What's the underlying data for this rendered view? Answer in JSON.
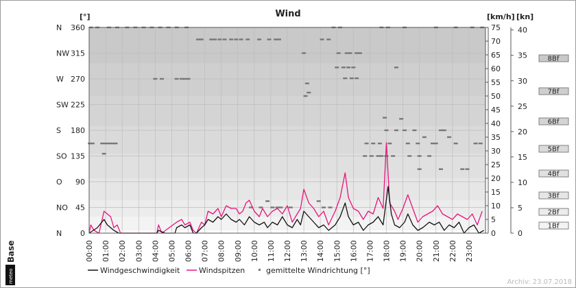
{
  "chart_data": {
    "type": "line",
    "title": "Wind",
    "units": {
      "direction": "[°]",
      "speed_kmh": "[km/h]",
      "speed_kn": "[kn]"
    },
    "direction_axis": {
      "ylim": [
        0,
        360
      ],
      "ticks": [
        {
          "value": 0,
          "compass": "N",
          "label": "0"
        },
        {
          "value": 45,
          "compass": "NO",
          "label": "45"
        },
        {
          "value": 90,
          "compass": "O",
          "label": "90"
        },
        {
          "value": 135,
          "compass": "SO",
          "label": "135"
        },
        {
          "value": 180,
          "compass": "S",
          "label": "180"
        },
        {
          "value": 225,
          "compass": "SW",
          "label": "225"
        },
        {
          "value": 270,
          "compass": "W",
          "label": "270"
        },
        {
          "value": 315,
          "compass": "NW",
          "label": "315"
        },
        {
          "value": 360,
          "compass": "N",
          "label": "360"
        }
      ]
    },
    "kmh_axis": {
      "ylim": [
        0,
        75
      ],
      "ticks": [
        0,
        5,
        10,
        15,
        20,
        25,
        30,
        35,
        40,
        45,
        50,
        55,
        60,
        65,
        70,
        75
      ]
    },
    "kn_axis": {
      "ticks": [
        0,
        5,
        10,
        15,
        20,
        25,
        30,
        35,
        40
      ]
    },
    "beaufort": [
      {
        "label": "1Bf",
        "kmh": 1
      },
      {
        "label": "2Bf",
        "kmh": 6
      },
      {
        "label": "3Bf",
        "kmh": 12
      },
      {
        "label": "4Bf",
        "kmh": 20
      },
      {
        "label": "5Bf",
        "kmh": 29
      },
      {
        "label": "6Bf",
        "kmh": 39
      },
      {
        "label": "7Bf",
        "kmh": 50
      },
      {
        "label": "8Bf",
        "kmh": 62
      }
    ],
    "x_ticks": [
      "00:00",
      "01:00",
      "02:00",
      "03:00",
      "04:00",
      "05:00",
      "06:00",
      "07:00",
      "08:00",
      "09:00",
      "10:00",
      "11:00",
      "12:00",
      "13:00",
      "14:00",
      "15:00",
      "16:00",
      "17:00",
      "18:00",
      "19:00",
      "20:00",
      "21:00",
      "22:00",
      "23:00"
    ],
    "xlim_hours": [
      0,
      24
    ],
    "series": [
      {
        "name": "Windgeschwindigkeit",
        "color": "#111111",
        "points": [
          [
            0,
            0
          ],
          [
            0.5,
            2
          ],
          [
            0.9,
            5
          ],
          [
            1.1,
            3
          ],
          [
            1.5,
            1
          ],
          [
            1.8,
            0
          ],
          [
            3,
            0
          ],
          [
            4.1,
            0
          ],
          [
            4.2,
            1
          ],
          [
            4.6,
            0
          ],
          [
            5.2,
            0
          ],
          [
            5.3,
            2
          ],
          [
            5.6,
            3
          ],
          [
            5.8,
            2
          ],
          [
            6.1,
            3
          ],
          [
            6.3,
            0
          ],
          [
            6.5,
            0
          ],
          [
            6.8,
            2
          ],
          [
            7.0,
            3
          ],
          [
            7.2,
            5
          ],
          [
            7.5,
            4
          ],
          [
            7.8,
            6
          ],
          [
            8.0,
            5
          ],
          [
            8.3,
            7
          ],
          [
            8.6,
            5
          ],
          [
            8.9,
            4
          ],
          [
            9.1,
            5
          ],
          [
            9.4,
            3
          ],
          [
            9.7,
            6
          ],
          [
            10.0,
            4
          ],
          [
            10.3,
            3
          ],
          [
            10.6,
            4
          ],
          [
            10.8,
            2
          ],
          [
            11.1,
            4
          ],
          [
            11.4,
            3
          ],
          [
            11.7,
            6
          ],
          [
            12.0,
            3
          ],
          [
            12.3,
            2
          ],
          [
            12.6,
            5
          ],
          [
            12.8,
            3
          ],
          [
            13.0,
            8
          ],
          [
            13.3,
            6
          ],
          [
            13.6,
            4
          ],
          [
            13.9,
            2
          ],
          [
            14.2,
            3
          ],
          [
            14.5,
            1
          ],
          [
            14.9,
            3
          ],
          [
            15.2,
            6
          ],
          [
            15.5,
            11
          ],
          [
            15.7,
            6
          ],
          [
            16.0,
            3
          ],
          [
            16.3,
            4
          ],
          [
            16.6,
            1
          ],
          [
            16.9,
            3
          ],
          [
            17.2,
            4
          ],
          [
            17.5,
            6
          ],
          [
            17.8,
            3
          ],
          [
            18.1,
            17
          ],
          [
            18.3,
            7
          ],
          [
            18.5,
            3
          ],
          [
            18.8,
            2
          ],
          [
            19.1,
            4
          ],
          [
            19.3,
            7
          ],
          [
            19.6,
            3
          ],
          [
            19.9,
            1
          ],
          [
            20.2,
            2
          ],
          [
            20.6,
            4
          ],
          [
            20.9,
            3
          ],
          [
            21.2,
            4
          ],
          [
            21.5,
            1
          ],
          [
            21.8,
            3
          ],
          [
            22.1,
            2
          ],
          [
            22.4,
            4
          ],
          [
            22.7,
            0
          ],
          [
            23.0,
            2
          ],
          [
            23.3,
            3
          ],
          [
            23.6,
            0
          ],
          [
            23.9,
            1
          ]
        ]
      },
      {
        "name": "Windspitzen",
        "color": "#e8137c",
        "points": [
          [
            0,
            0
          ],
          [
            0.1,
            3
          ],
          [
            0.3,
            1
          ],
          [
            0.6,
            0
          ],
          [
            0.9,
            8
          ],
          [
            1.1,
            7
          ],
          [
            1.3,
            6
          ],
          [
            1.5,
            2
          ],
          [
            1.7,
            3
          ],
          [
            1.9,
            0
          ],
          [
            2.2,
            0
          ],
          [
            4.1,
            0
          ],
          [
            4.2,
            3
          ],
          [
            4.4,
            0
          ],
          [
            5.3,
            4
          ],
          [
            5.6,
            5
          ],
          [
            5.8,
            3
          ],
          [
            6.1,
            4
          ],
          [
            6.3,
            1
          ],
          [
            6.5,
            0
          ],
          [
            6.8,
            4
          ],
          [
            7.0,
            3
          ],
          [
            7.2,
            8
          ],
          [
            7.5,
            7
          ],
          [
            7.8,
            9
          ],
          [
            8.0,
            6
          ],
          [
            8.3,
            10
          ],
          [
            8.6,
            9
          ],
          [
            8.9,
            9
          ],
          [
            9.1,
            7
          ],
          [
            9.3,
            8
          ],
          [
            9.5,
            11
          ],
          [
            9.7,
            12
          ],
          [
            10.0,
            8
          ],
          [
            10.3,
            6
          ],
          [
            10.5,
            9
          ],
          [
            10.8,
            6
          ],
          [
            11.1,
            8
          ],
          [
            11.4,
            9
          ],
          [
            11.7,
            7
          ],
          [
            12.0,
            10
          ],
          [
            12.3,
            4
          ],
          [
            12.6,
            7
          ],
          [
            12.8,
            9
          ],
          [
            13.0,
            16
          ],
          [
            13.3,
            11
          ],
          [
            13.6,
            9
          ],
          [
            13.9,
            6
          ],
          [
            14.2,
            8
          ],
          [
            14.5,
            3
          ],
          [
            14.9,
            8
          ],
          [
            15.2,
            13
          ],
          [
            15.5,
            22
          ],
          [
            15.7,
            13
          ],
          [
            16.0,
            9
          ],
          [
            16.3,
            8
          ],
          [
            16.6,
            5
          ],
          [
            16.9,
            8
          ],
          [
            17.2,
            7
          ],
          [
            17.5,
            13
          ],
          [
            17.8,
            9
          ],
          [
            18.0,
            33
          ],
          [
            18.2,
            11
          ],
          [
            18.5,
            8
          ],
          [
            18.7,
            5
          ],
          [
            19.0,
            9
          ],
          [
            19.3,
            14
          ],
          [
            19.6,
            9
          ],
          [
            19.9,
            4
          ],
          [
            20.2,
            6
          ],
          [
            20.5,
            7
          ],
          [
            20.8,
            8
          ],
          [
            21.1,
            10
          ],
          [
            21.4,
            7
          ],
          [
            21.7,
            6
          ],
          [
            22.0,
            5
          ],
          [
            22.3,
            7
          ],
          [
            22.6,
            6
          ],
          [
            22.9,
            5
          ],
          [
            23.2,
            7
          ],
          [
            23.5,
            3
          ],
          [
            23.8,
            8
          ]
        ]
      },
      {
        "name": "gemittelte Windrichtung [°]",
        "color": "#777777",
        "points": [
          [
            0.05,
            157
          ],
          [
            0.2,
            157
          ],
          [
            0.8,
            157
          ],
          [
            0.9,
            139
          ],
          [
            1.0,
            157
          ],
          [
            1.2,
            157
          ],
          [
            1.4,
            157
          ],
          [
            1.6,
            157
          ],
          [
            0.1,
            360
          ],
          [
            0.5,
            360
          ],
          [
            1.2,
            360
          ],
          [
            1.7,
            360
          ],
          [
            2.3,
            360
          ],
          [
            2.8,
            360
          ],
          [
            3.3,
            360
          ],
          [
            3.8,
            360
          ],
          [
            4.3,
            360
          ],
          [
            4.8,
            360
          ],
          [
            5.3,
            360
          ],
          [
            5.9,
            360
          ],
          [
            4.0,
            270
          ],
          [
            4.4,
            270
          ],
          [
            5.3,
            270
          ],
          [
            5.6,
            270
          ],
          [
            5.8,
            270
          ],
          [
            6.0,
            270
          ],
          [
            6.6,
            339
          ],
          [
            6.8,
            339
          ],
          [
            7.4,
            339
          ],
          [
            7.6,
            339
          ],
          [
            7.9,
            339
          ],
          [
            8.2,
            339
          ],
          [
            8.6,
            339
          ],
          [
            8.9,
            339
          ],
          [
            9.2,
            339
          ],
          [
            9.6,
            339
          ],
          [
            10.3,
            339
          ],
          [
            10.9,
            339
          ],
          [
            11.3,
            339
          ],
          [
            11.5,
            339
          ],
          [
            13.0,
            315
          ],
          [
            13.2,
            262
          ],
          [
            13.3,
            246
          ],
          [
            13.1,
            240
          ],
          [
            14.1,
            339
          ],
          [
            14.5,
            339
          ],
          [
            14.8,
            360
          ],
          [
            15.2,
            360
          ],
          [
            15.6,
            315
          ],
          [
            15.8,
            315
          ],
          [
            16.2,
            315
          ],
          [
            16.4,
            315
          ],
          [
            15.1,
            315
          ],
          [
            15.0,
            290
          ],
          [
            15.4,
            290
          ],
          [
            15.7,
            290
          ],
          [
            16.0,
            290
          ],
          [
            15.5,
            271
          ],
          [
            15.9,
            271
          ],
          [
            16.2,
            271
          ],
          [
            13.9,
            56
          ],
          [
            14.2,
            45
          ],
          [
            14.6,
            45
          ],
          [
            11.1,
            45
          ],
          [
            11.4,
            45
          ],
          [
            11.6,
            45
          ],
          [
            10.8,
            56
          ],
          [
            12.2,
            45
          ],
          [
            9.8,
            45
          ],
          [
            10.4,
            45
          ],
          [
            16.7,
            135
          ],
          [
            17.1,
            135
          ],
          [
            17.2,
            157
          ],
          [
            17.5,
            135
          ],
          [
            17.7,
            135
          ],
          [
            18.0,
            135
          ],
          [
            17.6,
            157
          ],
          [
            18.0,
            180
          ],
          [
            18.2,
            157
          ],
          [
            18.4,
            135
          ],
          [
            18.6,
            180
          ],
          [
            18.9,
            200
          ],
          [
            19.1,
            180
          ],
          [
            19.3,
            157
          ],
          [
            19.4,
            135
          ],
          [
            19.7,
            180
          ],
          [
            19.9,
            157
          ],
          [
            20.0,
            135
          ],
          [
            20.3,
            168
          ],
          [
            20.6,
            135
          ],
          [
            20.8,
            157
          ],
          [
            21.0,
            157
          ],
          [
            21.3,
            180
          ],
          [
            21.5,
            180
          ],
          [
            21.8,
            168
          ],
          [
            22.2,
            157
          ],
          [
            22.6,
            112
          ],
          [
            22.9,
            112
          ],
          [
            23.4,
            157
          ],
          [
            23.7,
            157
          ],
          [
            18.1,
            360
          ],
          [
            17.7,
            360
          ],
          [
            19.1,
            360
          ],
          [
            21.0,
            360
          ],
          [
            22.2,
            360
          ],
          [
            23.2,
            360
          ],
          [
            23.8,
            360
          ],
          [
            18.6,
            290
          ],
          [
            17.9,
            202
          ],
          [
            16.8,
            157
          ],
          [
            20.0,
            112
          ],
          [
            21.3,
            112
          ]
        ]
      }
    ],
    "legend_position": "bottom",
    "grid": true
  },
  "labels": {
    "brand": "meteoBase",
    "brand_small": "meteo",
    "brand_big": "Base",
    "archive": "Archiv: 23.07.2018"
  }
}
